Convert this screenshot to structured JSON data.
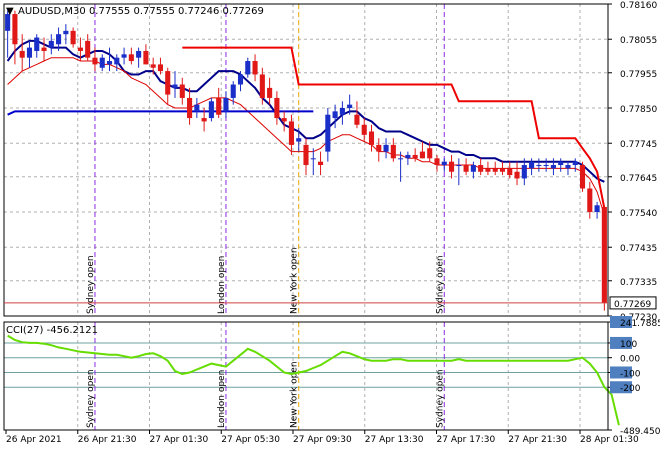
{
  "chart_data": [
    {
      "type": "candlestick",
      "title": "AUDUSD,M30  0.77555 0.77555 0.77246 0.77269",
      "symbol_marker": "▼",
      "last_price": "0.77269",
      "ylim": [
        0.7723,
        0.7816
      ],
      "y_tick_labels": [
        "0.78160",
        "0.78055",
        "0.77955",
        "0.77850",
        "0.77745",
        "0.77645",
        "0.77540",
        "0.77435",
        "0.77335",
        "0.77230"
      ],
      "x_tick_labels": [
        "26 Apr 2021",
        "26 Apr 21:30",
        "27 Apr 01:30",
        "27 Apr 05:30",
        "27 Apr 09:30",
        "27 Apr 13:30",
        "27 Apr 17:30",
        "27 Apr 21:30",
        "28 Apr 01:30"
      ],
      "session_labels": [
        "Sydney open",
        "London open",
        "New York open",
        "Sydney open"
      ],
      "candles": [
        [
          0.7808,
          0.7814,
          0.78,
          0.7813
        ],
        [
          0.7813,
          0.7814,
          0.7798,
          0.7804
        ],
        [
          0.7802,
          0.7807,
          0.7796,
          0.78
        ],
        [
          0.78,
          0.7805,
          0.7797,
          0.7803
        ],
        [
          0.7802,
          0.7807,
          0.78,
          0.7806
        ],
        [
          0.7803,
          0.7806,
          0.7799,
          0.7802
        ],
        [
          0.7803,
          0.7807,
          0.7801,
          0.7805
        ],
        [
          0.7804,
          0.7809,
          0.7802,
          0.7807
        ],
        [
          0.7807,
          0.781,
          0.7804,
          0.7808
        ],
        [
          0.7808,
          0.7809,
          0.7803,
          0.7804
        ],
        [
          0.7803,
          0.7806,
          0.7799,
          0.7802
        ],
        [
          0.7805,
          0.7807,
          0.7799,
          0.78
        ],
        [
          0.78,
          0.7803,
          0.7796,
          0.7798
        ],
        [
          0.7797,
          0.7801,
          0.7796,
          0.78
        ],
        [
          0.7798,
          0.7803,
          0.7796,
          0.7799
        ],
        [
          0.7798,
          0.7801,
          0.7796,
          0.78
        ],
        [
          0.78,
          0.7803,
          0.7798,
          0.7801
        ],
        [
          0.7801,
          0.7803,
          0.7798,
          0.7799
        ],
        [
          0.78,
          0.7803,
          0.7797,
          0.7802
        ],
        [
          0.7802,
          0.7804,
          0.7798,
          0.7798
        ],
        [
          0.7798,
          0.78,
          0.7795,
          0.7797
        ],
        [
          0.7798,
          0.78,
          0.7795,
          0.7796
        ],
        [
          0.7796,
          0.7797,
          0.7786,
          0.7789
        ],
        [
          0.7791,
          0.7796,
          0.7788,
          0.7792
        ],
        [
          0.7792,
          0.7794,
          0.7786,
          0.7788
        ],
        [
          0.7788,
          0.7791,
          0.778,
          0.7782
        ],
        [
          0.7784,
          0.7788,
          0.7782,
          0.7786
        ],
        [
          0.7782,
          0.7785,
          0.7778,
          0.7781
        ],
        [
          0.7782,
          0.7788,
          0.7781,
          0.7787
        ],
        [
          0.7788,
          0.7791,
          0.7782,
          0.7783
        ],
        [
          0.7784,
          0.779,
          0.7782,
          0.7788
        ],
        [
          0.7788,
          0.7793,
          0.7786,
          0.7792
        ],
        [
          0.7792,
          0.7796,
          0.779,
          0.7795
        ],
        [
          0.7795,
          0.78,
          0.7794,
          0.7799
        ],
        [
          0.7799,
          0.7801,
          0.7793,
          0.7795
        ],
        [
          0.7795,
          0.7797,
          0.7786,
          0.7788
        ],
        [
          0.7791,
          0.7794,
          0.7786,
          0.7788
        ],
        [
          0.7788,
          0.779,
          0.778,
          0.7782
        ],
        [
          0.7782,
          0.7784,
          0.7778,
          0.7781
        ],
        [
          0.7781,
          0.7783,
          0.7771,
          0.7774
        ],
        [
          0.7775,
          0.7779,
          0.7772,
          0.7776
        ],
        [
          0.7774,
          0.7776,
          0.7765,
          0.7768
        ],
        [
          0.777,
          0.7773,
          0.7765,
          0.777
        ],
        [
          0.7769,
          0.7772,
          0.7765,
          0.7768
        ],
        [
          0.7772,
          0.7785,
          0.7769,
          0.7783
        ],
        [
          0.7782,
          0.7786,
          0.7779,
          0.7784
        ],
        [
          0.7783,
          0.7787,
          0.778,
          0.7785
        ],
        [
          0.7785,
          0.7789,
          0.7783,
          0.7786
        ],
        [
          0.7783,
          0.7787,
          0.7779,
          0.778
        ],
        [
          0.778,
          0.7782,
          0.7775,
          0.7777
        ],
        [
          0.7778,
          0.778,
          0.7772,
          0.7774
        ],
        [
          0.7774,
          0.7776,
          0.7769,
          0.7772
        ],
        [
          0.7772,
          0.7776,
          0.777,
          0.7774
        ],
        [
          0.7774,
          0.7776,
          0.7769,
          0.777
        ],
        [
          0.777,
          0.7772,
          0.7763,
          0.777
        ],
        [
          0.777,
          0.7772,
          0.7768,
          0.7771
        ],
        [
          0.7771,
          0.7773,
          0.7769,
          0.777
        ],
        [
          0.7772,
          0.7775,
          0.777,
          0.777
        ],
        [
          0.7773,
          0.7775,
          0.7769,
          0.777
        ],
        [
          0.777,
          0.7771,
          0.7766,
          0.7768
        ],
        [
          0.7768,
          0.777,
          0.7766,
          0.7769
        ],
        [
          0.7769,
          0.7771,
          0.7764,
          0.7766
        ],
        [
          0.7768,
          0.777,
          0.7762,
          0.7768
        ],
        [
          0.7768,
          0.777,
          0.7765,
          0.7766
        ],
        [
          0.7766,
          0.7769,
          0.7764,
          0.7768
        ],
        [
          0.7768,
          0.777,
          0.7765,
          0.7766
        ],
        [
          0.7767,
          0.7769,
          0.7765,
          0.7766
        ],
        [
          0.7767,
          0.7769,
          0.7765,
          0.7766
        ],
        [
          0.7767,
          0.7769,
          0.7765,
          0.7766
        ],
        [
          0.7767,
          0.7769,
          0.7764,
          0.7765
        ],
        [
          0.7766,
          0.7769,
          0.7762,
          0.7764
        ],
        [
          0.7764,
          0.777,
          0.7762,
          0.7768
        ],
        [
          0.7767,
          0.777,
          0.7765,
          0.7769
        ],
        [
          0.7768,
          0.777,
          0.7766,
          0.7768
        ],
        [
          0.7768,
          0.777,
          0.7766,
          0.7768
        ],
        [
          0.7767,
          0.777,
          0.7765,
          0.7768
        ],
        [
          0.7768,
          0.777,
          0.7766,
          0.7769
        ],
        [
          0.7767,
          0.7769,
          0.7765,
          0.7768
        ],
        [
          0.7768,
          0.777,
          0.7766,
          0.7769
        ],
        [
          0.7768,
          0.7769,
          0.776,
          0.7761
        ],
        [
          0.7761,
          0.7763,
          0.7752,
          0.7754
        ],
        [
          0.7754,
          0.7757,
          0.7752,
          0.7756
        ],
        [
          0.77555,
          0.77555,
          0.77246,
          0.77269
        ]
      ],
      "series": [
        {
          "name": "",
          "color": "#00008b",
          "values": [
            0.7799,
            0.7802,
            0.7804,
            0.7805,
            0.7805,
            0.7804,
            0.7803,
            0.7803,
            0.7803,
            0.7801,
            0.78,
            0.7801,
            0.7802,
            0.7802,
            0.7801,
            0.7799,
            0.7796,
            0.7795,
            0.7795,
            0.7796,
            0.7796,
            0.7793,
            0.7792,
            0.7791,
            0.7791,
            0.779,
            0.779,
            0.7792,
            0.7794,
            0.7796,
            0.7796,
            0.7796,
            0.7795,
            0.7793,
            0.7791,
            0.7788,
            0.7786,
            0.7783,
            0.778,
            0.7779,
            0.7778,
            0.7776,
            0.7776,
            0.7777,
            0.7779,
            0.7781,
            0.7783,
            0.7784,
            0.7784,
            0.7782,
            0.7781,
            0.7779,
            0.7778,
            0.7778,
            0.7778,
            0.7777,
            0.7776,
            0.7775,
            0.7774,
            0.7774,
            0.7773,
            0.7772,
            0.7772,
            0.7771,
            0.7771,
            0.777,
            0.777,
            0.777,
            0.7769,
            0.7769,
            0.7769,
            0.7769,
            0.7769,
            0.7769,
            0.7769,
            0.7769,
            0.7769,
            0.7769,
            0.7769,
            0.7768,
            0.7766,
            0.7764,
            0.7763
          ]
        },
        {
          "name": "",
          "color": "#dd0000",
          "values": [
            0.7792,
            0.7794,
            0.7796,
            0.7797,
            0.7798,
            0.7799,
            0.78,
            0.78,
            0.78,
            0.78,
            0.7799,
            0.7799,
            0.7799,
            0.7798,
            0.7798,
            0.7797,
            0.7796,
            0.7794,
            0.7793,
            0.7792,
            0.779,
            0.7788,
            0.7786,
            0.7785,
            0.7785,
            0.7785,
            0.7786,
            0.7787,
            0.7788,
            0.7788,
            0.7788,
            0.7787,
            0.7786,
            0.7784,
            0.7782,
            0.778,
            0.7778,
            0.7776,
            0.7774,
            0.7772,
            0.7772,
            0.7772,
            0.7772,
            0.7773,
            0.7775,
            0.7776,
            0.7777,
            0.7777,
            0.7776,
            0.7775,
            0.7774,
            0.7772,
            0.7772,
            0.7771,
            0.7771,
            0.777,
            0.777,
            0.7769,
            0.7769,
            0.7768,
            0.7768,
            0.7768,
            0.7768,
            0.7768,
            0.7768,
            0.7767,
            0.7767,
            0.7767,
            0.7767,
            0.7767,
            0.7767,
            0.7767,
            0.7767,
            0.7767,
            0.7767,
            0.7767,
            0.7767,
            0.7767,
            0.7767,
            0.7766,
            0.7764,
            0.776,
            0.7753
          ]
        },
        {
          "name": "",
          "color": "#0000cc",
          "values": [
            0.7783,
            0.7784,
            0.7784,
            0.7784,
            0.7784,
            0.7784,
            0.7784,
            0.7784,
            0.7784,
            0.7784,
            0.7784,
            0.7784,
            0.7784,
            0.7784,
            0.7784,
            0.7784,
            0.7784,
            0.7784,
            0.7784,
            0.7784,
            0.7784,
            0.7784,
            0.7784,
            0.7784,
            0.7784,
            0.7784,
            0.7784,
            0.7784,
            0.7784,
            0.7784,
            0.7784,
            0.7784,
            0.7784,
            0.7784,
            0.7784,
            0.7784,
            0.7784,
            0.7784,
            0.7784,
            0.7784,
            0.7784,
            0.7784,
            0.7784
          ]
        },
        {
          "name": "",
          "color": "#ee0000",
          "values": [
            null,
            null,
            null,
            null,
            null,
            null,
            null,
            null,
            null,
            null,
            null,
            null,
            null,
            null,
            null,
            null,
            null,
            null,
            null,
            null,
            null,
            null,
            null,
            null,
            0.7803,
            0.7803,
            0.7803,
            0.7803,
            0.7803,
            0.7803,
            0.7803,
            0.7803,
            0.7803,
            0.7803,
            0.7803,
            0.7803,
            0.7803,
            0.7803,
            0.7803,
            0.7803,
            0.7792,
            0.7792,
            0.7792,
            0.7792,
            0.7792,
            0.7792,
            0.7792,
            0.7792,
            0.7792,
            0.7792,
            0.7792,
            0.7792,
            0.7792,
            0.7792,
            0.7792,
            0.7792,
            0.7792,
            0.7792,
            0.7792,
            0.7792,
            0.7792,
            0.7792,
            0.7787,
            0.7787,
            0.7787,
            0.7787,
            0.7787,
            0.7787,
            0.7787,
            0.7787,
            0.7787,
            0.7787,
            0.7787,
            0.7776,
            0.7776,
            0.7776,
            0.7776,
            0.7776,
            0.7776,
            0.7773,
            0.777,
            0.7766,
            0.7755
          ]
        }
      ],
      "grid": true
    },
    {
      "type": "line",
      "title": "CCI(27) -456.2121",
      "ylim": [
        -489.4503,
        241.7885
      ],
      "y_tick_labels": [
        "241.7885",
        "100",
        "0.00",
        "-100",
        "-200",
        "-489.4503"
      ],
      "levels": [
        100,
        0,
        -100,
        -200
      ],
      "series": [
        {
          "name": "",
          "color": "#66dd00",
          "values": [
            150,
            120,
            105,
            100,
            100,
            95,
            85,
            70,
            60,
            50,
            40,
            35,
            30,
            25,
            20,
            20,
            10,
            0,
            10,
            25,
            30,
            10,
            -20,
            -90,
            -110,
            -100,
            -80,
            -60,
            -40,
            -50,
            -60,
            -20,
            20,
            60,
            40,
            10,
            -20,
            -60,
            -100,
            -110,
            -100,
            -90,
            -70,
            -50,
            -20,
            10,
            40,
            30,
            10,
            -10,
            -20,
            -20,
            -20,
            -10,
            -10,
            -20,
            -20,
            -20,
            -20,
            -20,
            -20,
            -20,
            -10,
            -20,
            -20,
            -20,
            -20,
            -20,
            -20,
            -20,
            -20,
            -20,
            -20,
            -20,
            -20,
            -20,
            -20,
            -20,
            -10,
            0,
            -40,
            -100,
            -200,
            -250,
            -456.2121
          ]
        }
      ]
    }
  ]
}
